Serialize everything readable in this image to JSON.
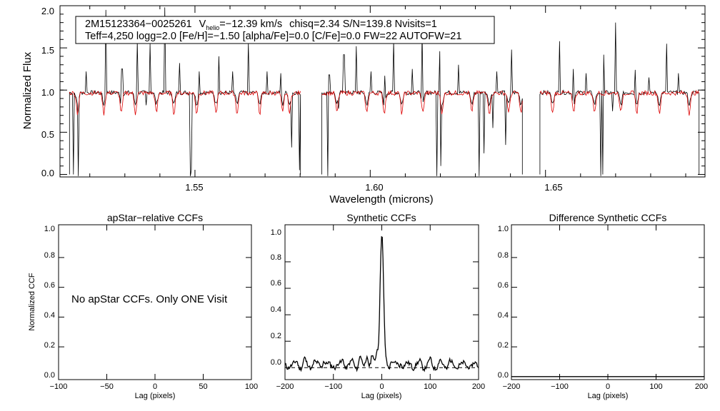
{
  "chart_data": [
    {
      "type": "line",
      "xlabel": "Wavelength (microns)",
      "ylabel": "Normalized Flux",
      "xlim": [
        1.5115,
        1.6955
      ],
      "ylim": [
        -0.03,
        2.0
      ],
      "x_ticks": [
        "1.55",
        "1.60",
        "1.65"
      ],
      "y_ticks": [
        "0.0",
        "0.5",
        "1.0",
        "1.5",
        "2.0"
      ],
      "info_box": {
        "line1": {
          "object": "2M15123364−0025261",
          "v_symbol": "V",
          "v_sub": "helio",
          "v_value": "=−12.39 km/s",
          "rest": "chisq=2.34  S/N=139.8  Nvisits=1"
        },
        "line2": "Teff=4,250 logg=2.0 [Fe/H]=−1.50 [alpha/Fe]=0.0 [C/Fe]=0.0 FW=22 AUTOFW=21"
      },
      "chips": [
        [
          1.5142,
          1.5801
        ],
        [
          1.5862,
          1.6434
        ],
        [
          1.6484,
          1.6938
        ]
      ],
      "series": [
        {
          "role": "observed",
          "color": "#000000"
        },
        {
          "role": "model",
          "color": "#dd0000"
        }
      ],
      "emission_spikes": [
        [
          1.519,
          1.22
        ],
        [
          1.5245,
          1.95
        ],
        [
          1.5292,
          1.25
        ],
        [
          1.5336,
          1.58
        ],
        [
          1.5371,
          1.55
        ],
        [
          1.5415,
          1.98
        ],
        [
          1.5457,
          1.32
        ],
        [
          1.5512,
          1.22
        ],
        [
          1.5568,
          1.4
        ],
        [
          1.5608,
          1.22
        ],
        [
          1.5652,
          1.56
        ],
        [
          1.5706,
          1.22
        ],
        [
          1.5745,
          1.2
        ],
        [
          1.5883,
          1.18
        ],
        [
          1.5925,
          1.42
        ],
        [
          1.5959,
          1.52
        ],
        [
          1.6003,
          1.22
        ],
        [
          1.6042,
          1.17
        ],
        [
          1.6067,
          1.58
        ],
        [
          1.612,
          1.25
        ],
        [
          1.6149,
          1.68
        ],
        [
          1.6199,
          1.46
        ],
        [
          1.6252,
          1.3
        ],
        [
          1.631,
          1.42
        ],
        [
          1.6362,
          1.22
        ],
        [
          1.6403,
          1.48
        ],
        [
          1.654,
          1.58
        ],
        [
          1.658,
          1.25
        ],
        [
          1.6615,
          1.2
        ],
        [
          1.6665,
          1.42
        ],
        [
          1.67,
          1.8
        ],
        [
          1.6757,
          1.24
        ],
        [
          1.6796,
          1.15
        ],
        [
          1.6846,
          1.55
        ],
        [
          1.688,
          1.2
        ]
      ],
      "deep_drops": [
        [
          1.5152,
          0.0
        ],
        [
          1.5168,
          -0.02
        ],
        [
          1.536,
          0.82
        ],
        [
          1.5488,
          -0.02
        ],
        [
          1.5491,
          0.05
        ],
        [
          1.5775,
          0.32
        ],
        [
          1.5798,
          0.05
        ],
        [
          1.588,
          -0.02
        ],
        [
          1.591,
          0.78
        ],
        [
          1.6191,
          -0.02
        ],
        [
          1.6202,
          0.1
        ],
        [
          1.631,
          -0.02
        ],
        [
          1.6325,
          0.25
        ],
        [
          1.635,
          0.55
        ],
        [
          1.6387,
          0.35
        ],
        [
          1.6657,
          -0.02
        ],
        [
          1.6662,
          0.0
        ],
        [
          1.669,
          0.75
        ]
      ],
      "absorption_lines": [
        1.5165,
        1.524,
        1.529,
        1.533,
        1.539,
        1.544,
        1.5505,
        1.556,
        1.562,
        1.5685,
        1.575,
        1.577,
        1.5905,
        1.599,
        1.604,
        1.609,
        1.615,
        1.6205,
        1.629,
        1.634,
        1.6395,
        1.643,
        1.652,
        1.658,
        1.664,
        1.6715,
        1.676,
        1.6825,
        1.691
      ]
    },
    {
      "type": "line",
      "title": "apStar−relative CCFs",
      "xlabel": "Lag (pixels)",
      "ylabel": "Normalized CCF",
      "xlim": [
        -100,
        100
      ],
      "ylim": [
        -0.02,
        1.02
      ],
      "x_ticks": [
        "−100",
        "−50",
        "0",
        "50",
        "100"
      ],
      "y_ticks": [
        "0.0",
        "0.2",
        "0.4",
        "0.6",
        "0.8",
        "1.0"
      ],
      "message": "No apStar CCFs.  Only ONE Visit"
    },
    {
      "type": "line",
      "title": "Synthetic CCFs",
      "xlabel": "Lag (pixels)",
      "ylabel": "",
      "xlim": [
        -200,
        200
      ],
      "ylim": [
        -0.09,
        1.08
      ],
      "x_ticks": [
        "−200",
        "−100",
        "0",
        "100",
        "200"
      ],
      "y_ticks": [
        "0.0",
        "0.2",
        "0.4",
        "0.6",
        "0.8",
        "1.0"
      ],
      "peak": {
        "x": 0,
        "y": 1.0,
        "half_width": 5
      },
      "zero_line": "dashed",
      "bumps": [
        [
          -190,
          0.02
        ],
        [
          -175,
          0.04
        ],
        [
          -160,
          0.06
        ],
        [
          -140,
          0.05
        ],
        [
          -120,
          0.08
        ],
        [
          -100,
          0.02
        ],
        [
          -80,
          0.08
        ],
        [
          -60,
          0.05
        ],
        [
          -45,
          0.1
        ],
        [
          -30,
          0.12
        ],
        [
          -20,
          0.1
        ],
        [
          -10,
          0.16
        ],
        [
          20,
          0.08
        ],
        [
          40,
          0.05
        ],
        [
          60,
          0.03
        ],
        [
          80,
          0.04
        ],
        [
          100,
          0.05
        ],
        [
          120,
          0.04
        ],
        [
          140,
          0.06
        ],
        [
          160,
          0.03
        ],
        [
          180,
          0.02
        ]
      ]
    },
    {
      "type": "line",
      "title": "Difference Synthetic CCFs",
      "xlabel": "Lag (pixels)",
      "ylabel": "",
      "xlim": [
        -200,
        200
      ],
      "ylim": [
        -0.02,
        1.02
      ],
      "x_ticks": [
        "−200",
        "−100",
        "0",
        "100",
        "200"
      ],
      "y_ticks": [
        "0.0",
        "0.2",
        "0.4",
        "0.6",
        "0.8",
        "1.0"
      ],
      "baseline": 0.0
    }
  ]
}
